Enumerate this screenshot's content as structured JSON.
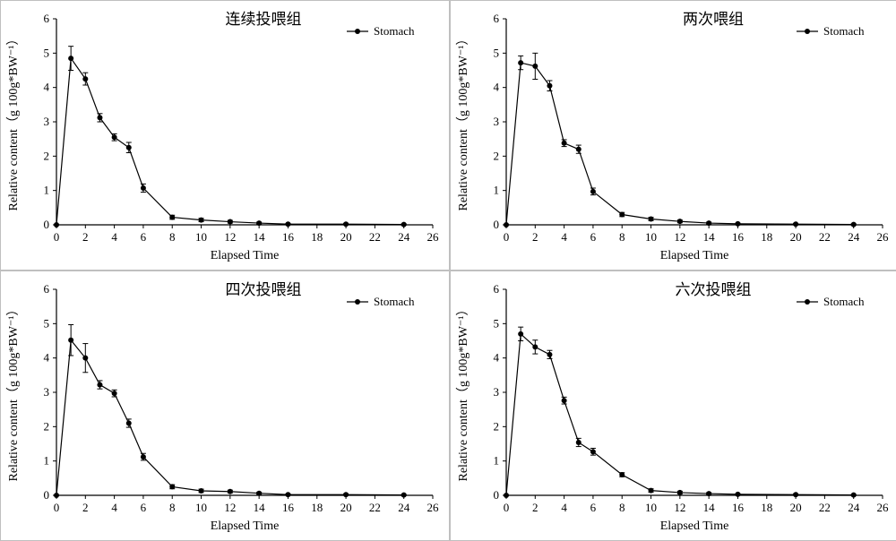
{
  "figure": {
    "background_color": "#ffffff",
    "panel_border_color": "#bfbfbf",
    "axis_color": "#000000",
    "font_family": "Times New Roman",
    "xlabel": "Elapsed Time",
    "ylabel": "Relative content（g 100g*BW⁻¹）",
    "legend_label": "Stomach",
    "marker_color": "#000000",
    "line_color": "#000000",
    "line_width": 1.2,
    "marker_size": 6,
    "xlim": [
      0,
      26
    ],
    "ylim": [
      0,
      6
    ],
    "xtick_step": 2,
    "ytick_step": 1,
    "tick_len": 4,
    "tick_direction": "out",
    "axis_label_fontsize": 14,
    "tick_fontsize": 13,
    "title_fontsize": 17
  },
  "panels": [
    {
      "title": "连续投喂组",
      "x": [
        0,
        1,
        2,
        3,
        4,
        5,
        6,
        8,
        10,
        12,
        14,
        16,
        20,
        24
      ],
      "y": [
        0,
        4.85,
        4.25,
        3.12,
        2.55,
        2.25,
        1.07,
        0.22,
        0.14,
        0.09,
        0.05,
        0.02,
        0.02,
        0.01
      ],
      "err": [
        0,
        0.35,
        0.18,
        0.12,
        0.1,
        0.15,
        0.12,
        0.06,
        0.05,
        0.04,
        0.03,
        0.02,
        0.02,
        0.02
      ]
    },
    {
      "title": "两次喂组",
      "x": [
        0,
        1,
        2,
        3,
        4,
        5,
        6,
        8,
        10,
        12,
        14,
        16,
        20,
        24
      ],
      "y": [
        0,
        4.72,
        4.62,
        4.05,
        2.38,
        2.2,
        0.97,
        0.3,
        0.17,
        0.1,
        0.05,
        0.03,
        0.02,
        0.01
      ],
      "err": [
        0,
        0.2,
        0.38,
        0.15,
        0.1,
        0.12,
        0.1,
        0.06,
        0.05,
        0.04,
        0.03,
        0.02,
        0.02,
        0.02
      ]
    },
    {
      "title": "四次投喂组",
      "x": [
        0,
        1,
        2,
        3,
        4,
        5,
        6,
        8,
        10,
        12,
        14,
        16,
        20,
        24
      ],
      "y": [
        0,
        4.52,
        4.0,
        3.22,
        2.97,
        2.1,
        1.12,
        0.25,
        0.13,
        0.11,
        0.06,
        0.02,
        0.02,
        0.01
      ],
      "err": [
        0,
        0.45,
        0.42,
        0.12,
        0.1,
        0.12,
        0.1,
        0.06,
        0.05,
        0.04,
        0.03,
        0.02,
        0.02,
        0.02
      ]
    },
    {
      "title": "六次投喂组",
      "x": [
        0,
        1,
        2,
        3,
        4,
        5,
        6,
        8,
        10,
        12,
        14,
        16,
        20,
        24
      ],
      "y": [
        0,
        4.7,
        4.32,
        4.1,
        2.76,
        1.54,
        1.27,
        0.6,
        0.14,
        0.08,
        0.05,
        0.03,
        0.02,
        0.01
      ],
      "err": [
        0,
        0.2,
        0.2,
        0.12,
        0.1,
        0.12,
        0.1,
        0.06,
        0.05,
        0.04,
        0.03,
        0.02,
        0.02,
        0.02
      ]
    }
  ]
}
